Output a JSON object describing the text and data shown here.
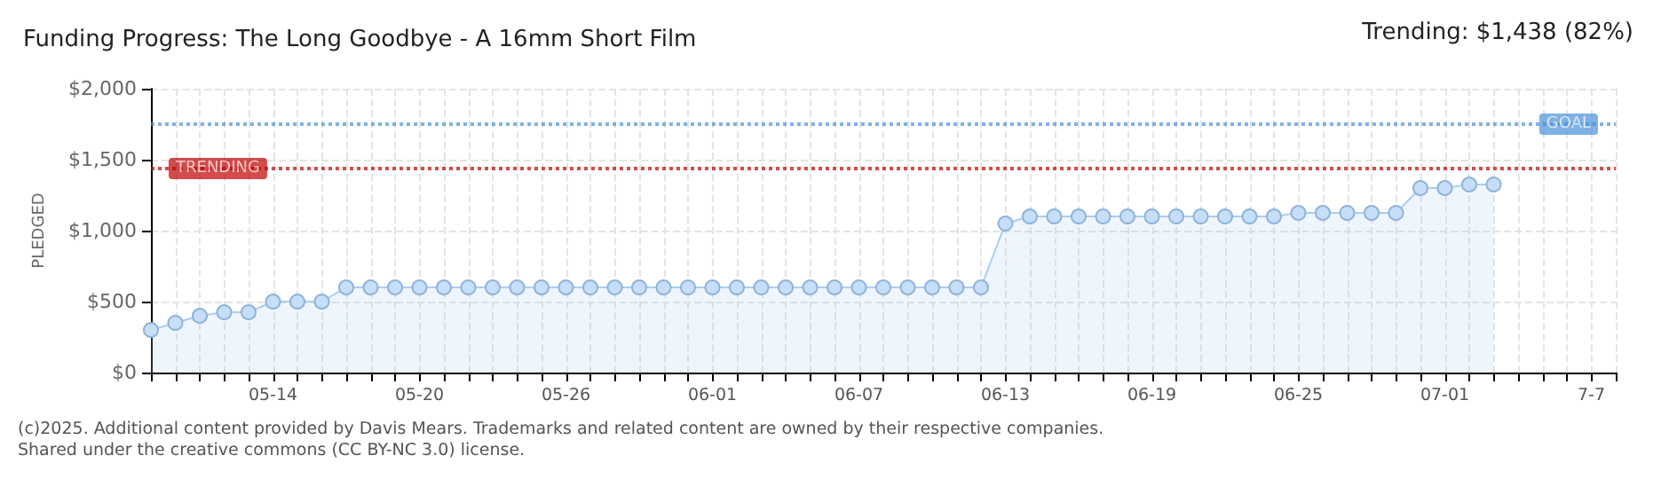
{
  "chart_data": {
    "type": "area",
    "title": "Funding Progress: The Long Goodbye - A 16mm Short Film",
    "ylabel": "PLEDGED",
    "annotations": [
      "Trending: $1,438 (82%)",
      "(c)2025. Additional content provided by Davis Mears. Trademarks and related content are owned by their respective companies.",
      "Shared under the creative commons (CC BY-NC 3.0) license."
    ],
    "x": [
      "--05-09",
      "--05-10",
      "--05-11",
      "--05-12",
      "--05-13",
      "--05-14",
      "--05-15",
      "--05-16",
      "--05-17",
      "--05-18",
      "--05-19",
      "--05-20",
      "--05-21",
      "--05-22",
      "--05-23",
      "--05-24",
      "--05-25",
      "--05-26",
      "--05-27",
      "--05-28",
      "--05-29",
      "--05-30",
      "--05-31",
      "--06-01",
      "--06-02",
      "--06-03",
      "--06-04",
      "--06-05",
      "--06-06",
      "--06-07",
      "--06-08",
      "--06-09",
      "--06-10",
      "--06-11",
      "--06-12",
      "--06-13",
      "--06-14",
      "--06-15",
      "--06-16",
      "--06-17",
      "--06-18",
      "--06-19",
      "--06-20",
      "--06-21",
      "--06-22",
      "--06-23",
      "--06-24",
      "--06-25",
      "--06-26",
      "--06-27",
      "--06-28",
      "--06-29",
      "--06-30",
      "--07-01",
      "--07-02",
      "--07-03"
    ],
    "series": [
      {
        "color": "#a9cdf2",
        "values": [
          300,
          350,
          400,
          425,
          425,
          500,
          500,
          500,
          600,
          600,
          600,
          600,
          600,
          600,
          600,
          600,
          600,
          600,
          600,
          600,
          600,
          600,
          600,
          600,
          600,
          600,
          600,
          600,
          600,
          600,
          600,
          600,
          600,
          600,
          600,
          1050,
          1100,
          1100,
          1100,
          1100,
          1100,
          1100,
          1100,
          1100,
          1100,
          1100,
          1100,
          1125,
          1125,
          1125,
          1125,
          1125,
          1300,
          1300,
          1325,
          1325
        ]
      }
    ],
    "xlim": [
      "--05-09",
      "--07-08"
    ],
    "xticks": [
      {
        "value": "--05-09",
        "label": null
      },
      {
        "value": "--05-10",
        "label": null
      },
      {
        "value": "--05-11",
        "label": null
      },
      {
        "value": "--05-12",
        "label": null
      },
      {
        "value": "--05-13",
        "label": null
      },
      {
        "value": "--05-14",
        "label": "05-14"
      },
      {
        "value": "--05-15",
        "label": null
      },
      {
        "value": "--05-16",
        "label": null
      },
      {
        "value": "--05-17",
        "label": null
      },
      {
        "value": "--05-18",
        "label": null
      },
      {
        "value": "--05-19",
        "label": null
      },
      {
        "value": "--05-20",
        "label": "05-20"
      },
      {
        "value": "--05-21",
        "label": null
      },
      {
        "value": "--05-22",
        "label": null
      },
      {
        "value": "--05-23",
        "label": null
      },
      {
        "value": "--05-24",
        "label": null
      },
      {
        "value": "--05-25",
        "label": null
      },
      {
        "value": "--05-26",
        "label": "05-26"
      },
      {
        "value": "--05-27",
        "label": null
      },
      {
        "value": "--05-28",
        "label": null
      },
      {
        "value": "--05-29",
        "label": null
      },
      {
        "value": "--05-30",
        "label": null
      },
      {
        "value": "--05-31",
        "label": null
      },
      {
        "value": "--06-01",
        "label": "06-01"
      },
      {
        "value": "--06-02",
        "label": null
      },
      {
        "value": "--06-03",
        "label": null
      },
      {
        "value": "--06-04",
        "label": null
      },
      {
        "value": "--06-05",
        "label": null
      },
      {
        "value": "--06-06",
        "label": null
      },
      {
        "value": "--06-07",
        "label": "06-07"
      },
      {
        "value": "--06-08",
        "label": null
      },
      {
        "value": "--06-09",
        "label": null
      },
      {
        "value": "--06-10",
        "label": null
      },
      {
        "value": "--06-11",
        "label": null
      },
      {
        "value": "--06-12",
        "label": null
      },
      {
        "value": "--06-13",
        "label": "06-13"
      },
      {
        "value": "--06-14",
        "label": null
      },
      {
        "value": "--06-15",
        "label": null
      },
      {
        "value": "--06-16",
        "label": null
      },
      {
        "value": "--06-17",
        "label": null
      },
      {
        "value": "--06-18",
        "label": null
      },
      {
        "value": "--06-19",
        "label": "06-19"
      },
      {
        "value": "--06-20",
        "label": null
      },
      {
        "value": "--06-21",
        "label": null
      },
      {
        "value": "--06-22",
        "label": null
      },
      {
        "value": "--06-23",
        "label": null
      },
      {
        "value": "--06-24",
        "label": null
      },
      {
        "value": "--06-25",
        "label": "06-25"
      },
      {
        "value": "--06-26",
        "label": null
      },
      {
        "value": "--06-27",
        "label": null
      },
      {
        "value": "--06-28",
        "label": null
      },
      {
        "value": "--06-29",
        "label": null
      },
      {
        "value": "--06-30",
        "label": null
      },
      {
        "value": "--07-01",
        "label": "07-01"
      },
      {
        "value": "--07-02",
        "label": null
      },
      {
        "value": "--07-03",
        "label": null
      },
      {
        "value": "--07-04",
        "label": null
      },
      {
        "value": "--07-05",
        "label": null
      },
      {
        "value": "--07-06",
        "label": null
      },
      {
        "value": "--07-07",
        "label": "7-7"
      },
      {
        "value": "--07-08",
        "label": null
      }
    ],
    "ylim": [
      0,
      2000
    ],
    "yticks": [
      {
        "value": 0,
        "label": "$0"
      },
      {
        "value": 500,
        "label": "$500"
      },
      {
        "value": 1000,
        "label": "$1,000"
      },
      {
        "value": 1500,
        "label": "$1,500"
      },
      {
        "value": 2000,
        "label": "$2,000"
      }
    ],
    "ref_lines": [
      {
        "axis": "y",
        "value": 1750,
        "label": "GOAL",
        "color": "#4a90d9",
        "line_style": "dotted"
      },
      {
        "axis": "y",
        "value": 1438,
        "label": "TRENDING",
        "color": "#c00000",
        "line_style": "dotted"
      }
    ],
    "grid": true,
    "marker": "circle",
    "line_style": "solid"
  }
}
